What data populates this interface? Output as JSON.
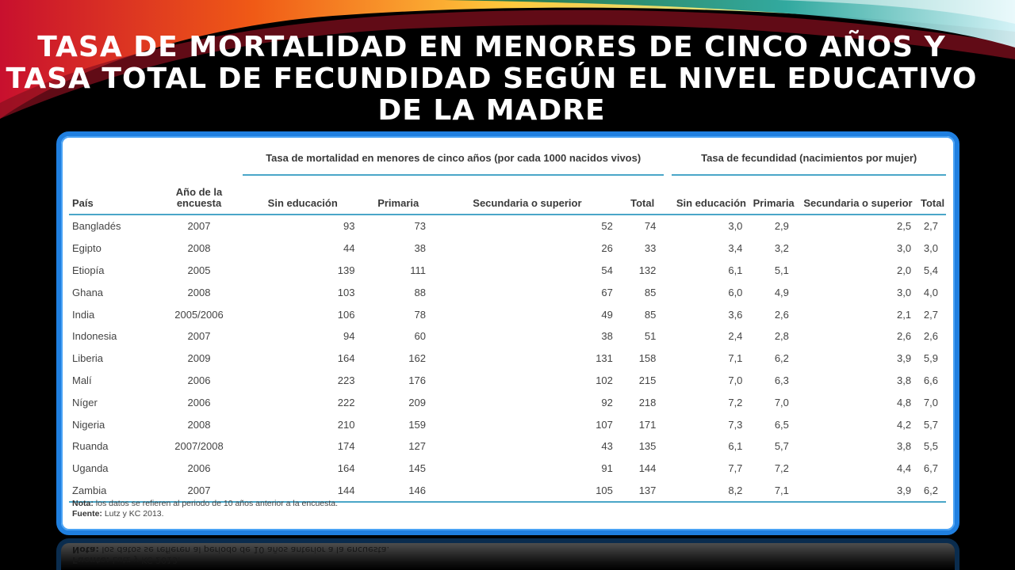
{
  "slide": {
    "title": "TASA DE MORTALIDAD EN MENORES DE CINCO AÑOS Y TASA TOTAL DE FECUNDIDAD SEGÚN EL NIVEL EDUCATIVO DE LA MADRE"
  },
  "table": {
    "group_headers": {
      "mortality": "Tasa de mortalidad en menores de cinco años (por cada 1000 nacidos vivos)",
      "fertility": "Tasa de fecundidad (nacimientos por mujer)"
    },
    "columns": {
      "country": "País",
      "year": "Año de la encuesta",
      "m_none": "Sin educación",
      "m_primary": "Primaria",
      "m_secondary": "Secundaria o superior",
      "m_total": "Total",
      "f_none": "Sin educación",
      "f_primary": "Primaria",
      "f_secondary": "Secundaria o superior",
      "f_total": "Total"
    },
    "rows": [
      [
        "Bangladés",
        "2007",
        "93",
        "73",
        "52",
        "74",
        "3,0",
        "2,9",
        "2,5",
        "2,7"
      ],
      [
        "Egipto",
        "2008",
        "44",
        "38",
        "26",
        "33",
        "3,4",
        "3,2",
        "3,0",
        "3,0"
      ],
      [
        "Etiopía",
        "2005",
        "139",
        "111",
        "54",
        "132",
        "6,1",
        "5,1",
        "2,0",
        "5,4"
      ],
      [
        "Ghana",
        "2008",
        "103",
        "88",
        "67",
        "85",
        "6,0",
        "4,9",
        "3,0",
        "4,0"
      ],
      [
        "India",
        "2005/2006",
        "106",
        "78",
        "49",
        "85",
        "3,6",
        "2,6",
        "2,1",
        "2,7"
      ],
      [
        "Indonesia",
        "2007",
        "94",
        "60",
        "38",
        "51",
        "2,4",
        "2,8",
        "2,6",
        "2,6"
      ],
      [
        "Liberia",
        "2009",
        "164",
        "162",
        "131",
        "158",
        "7,1",
        "6,2",
        "3,9",
        "5,9"
      ],
      [
        "Malí",
        "2006",
        "223",
        "176",
        "102",
        "215",
        "7,0",
        "6,3",
        "3,8",
        "6,6"
      ],
      [
        "Níger",
        "2006",
        "222",
        "209",
        "92",
        "218",
        "7,2",
        "7,0",
        "4,8",
        "7,0"
      ],
      [
        "Nigeria",
        "2008",
        "210",
        "159",
        "107",
        "171",
        "7,3",
        "6,5",
        "4,2",
        "5,7"
      ],
      [
        "Ruanda",
        "2007/2008",
        "174",
        "127",
        "43",
        "135",
        "6,1",
        "5,7",
        "3,8",
        "5,5"
      ],
      [
        "Uganda",
        "2006",
        "164",
        "145",
        "91",
        "144",
        "7,7",
        "7,2",
        "4,4",
        "6,7"
      ],
      [
        "Zambia",
        "2007",
        "144",
        "146",
        "105",
        "137",
        "8,2",
        "7,1",
        "3,9",
        "6,2"
      ]
    ],
    "note_label": "Nota:",
    "note_text": "los datos se refieren al periodo de 10 años anterior a la encuesta.",
    "source_label": "Fuente:",
    "source_text": "Lutz y KC 2013."
  },
  "colors": {
    "frame": "#1f7fe0",
    "rule": "#4aa6c8",
    "background": "#000000"
  }
}
